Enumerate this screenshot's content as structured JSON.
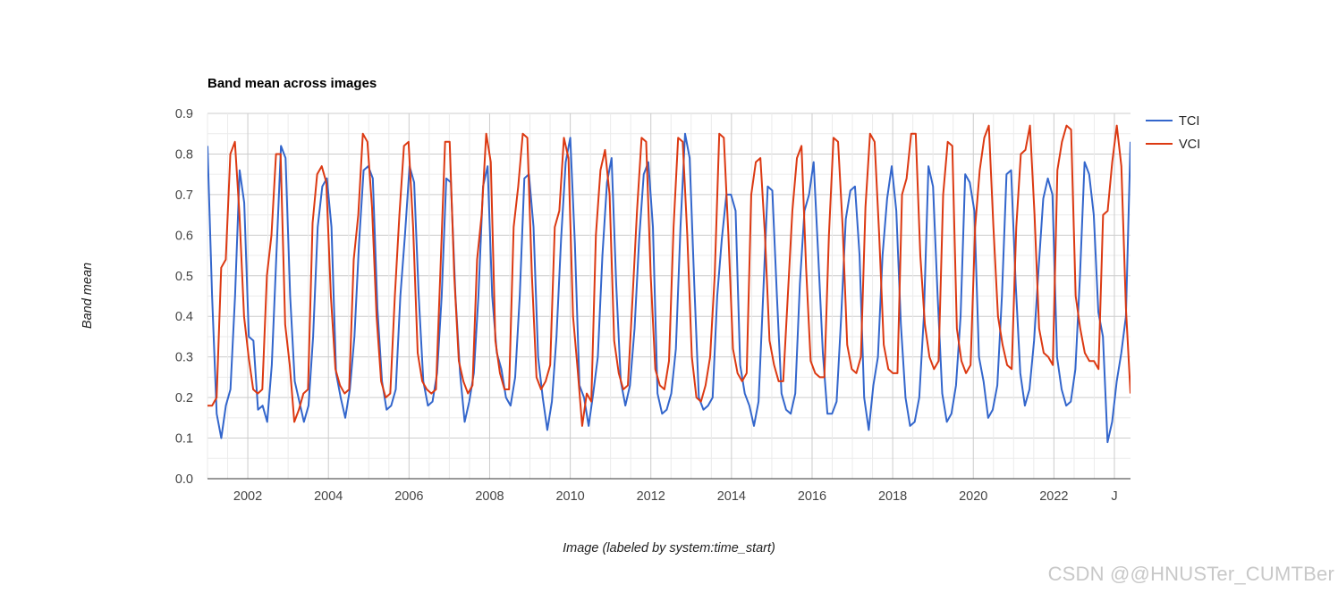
{
  "chart_data": {
    "type": "line",
    "title": "Band mean across images",
    "xlabel": "Image (labeled by system:time_start)",
    "ylabel": "Band mean",
    "ylim": [
      0,
      0.9
    ],
    "yticks": [
      "0.0",
      "0.1",
      "0.2",
      "0.3",
      "0.4",
      "0.5",
      "0.6",
      "0.7",
      "0.8",
      "0.9"
    ],
    "xlim": [
      2001,
      2023.9
    ],
    "xticks": [
      {
        "value": 2002,
        "label": "2002"
      },
      {
        "value": 2004,
        "label": "2004"
      },
      {
        "value": 2006,
        "label": "2006"
      },
      {
        "value": 2008,
        "label": "2008"
      },
      {
        "value": 2010,
        "label": "2010"
      },
      {
        "value": 2012,
        "label": "2012"
      },
      {
        "value": 2014,
        "label": "2014"
      },
      {
        "value": 2016,
        "label": "2016"
      },
      {
        "value": 2018,
        "label": "2018"
      },
      {
        "value": 2020,
        "label": "2020"
      },
      {
        "value": 2022,
        "label": "2022"
      },
      {
        "value": 2023.5,
        "label": "J"
      }
    ],
    "grid": true,
    "legend_position": "right",
    "sample_interval_years": 0.125,
    "series": [
      {
        "name": "TCI",
        "color": "#3366cc",
        "values": [
          0.82,
          0.45,
          0.16,
          0.1,
          0.18,
          0.22,
          0.45,
          0.76,
          0.68,
          0.35,
          0.34,
          0.17,
          0.18,
          0.14,
          0.28,
          0.55,
          0.82,
          0.79,
          0.45,
          0.24,
          0.19,
          0.14,
          0.18,
          0.35,
          0.62,
          0.72,
          0.74,
          0.62,
          0.26,
          0.2,
          0.15,
          0.22,
          0.35,
          0.58,
          0.76,
          0.77,
          0.74,
          0.42,
          0.24,
          0.17,
          0.18,
          0.22,
          0.45,
          0.6,
          0.77,
          0.73,
          0.45,
          0.24,
          0.18,
          0.19,
          0.26,
          0.45,
          0.74,
          0.73,
          0.45,
          0.26,
          0.14,
          0.19,
          0.26,
          0.45,
          0.72,
          0.77,
          0.45,
          0.31,
          0.27,
          0.2,
          0.18,
          0.25,
          0.45,
          0.74,
          0.75,
          0.62,
          0.3,
          0.2,
          0.12,
          0.19,
          0.35,
          0.59,
          0.78,
          0.84,
          0.58,
          0.23,
          0.2,
          0.13,
          0.21,
          0.3,
          0.55,
          0.73,
          0.79,
          0.48,
          0.24,
          0.18,
          0.23,
          0.37,
          0.59,
          0.75,
          0.78,
          0.62,
          0.21,
          0.16,
          0.17,
          0.21,
          0.32,
          0.62,
          0.85,
          0.79,
          0.48,
          0.2,
          0.17,
          0.18,
          0.2,
          0.45,
          0.59,
          0.7,
          0.7,
          0.66,
          0.28,
          0.21,
          0.18,
          0.13,
          0.19,
          0.45,
          0.72,
          0.71,
          0.45,
          0.21,
          0.17,
          0.16,
          0.21,
          0.48,
          0.66,
          0.7,
          0.78,
          0.55,
          0.31,
          0.16,
          0.16,
          0.19,
          0.4,
          0.64,
          0.71,
          0.72,
          0.55,
          0.2,
          0.12,
          0.23,
          0.3,
          0.55,
          0.69,
          0.77,
          0.66,
          0.38,
          0.2,
          0.13,
          0.14,
          0.2,
          0.4,
          0.77,
          0.72,
          0.45,
          0.21,
          0.14,
          0.16,
          0.23,
          0.4,
          0.75,
          0.73,
          0.66,
          0.3,
          0.24,
          0.15,
          0.17,
          0.23,
          0.45,
          0.75,
          0.76,
          0.48,
          0.26,
          0.18,
          0.22,
          0.34,
          0.52,
          0.69,
          0.74,
          0.7,
          0.3,
          0.22,
          0.18,
          0.19,
          0.27,
          0.5,
          0.78,
          0.75,
          0.65,
          0.41,
          0.35,
          0.09,
          0.14,
          0.24,
          0.31,
          0.4,
          0.83
        ]
      },
      {
        "name": "VCI",
        "color": "#dc3912",
        "values": [
          0.18,
          0.18,
          0.2,
          0.52,
          0.54,
          0.8,
          0.83,
          0.65,
          0.4,
          0.3,
          0.22,
          0.21,
          0.22,
          0.5,
          0.6,
          0.8,
          0.8,
          0.38,
          0.28,
          0.14,
          0.17,
          0.21,
          0.22,
          0.63,
          0.75,
          0.77,
          0.73,
          0.45,
          0.27,
          0.23,
          0.21,
          0.22,
          0.54,
          0.65,
          0.85,
          0.83,
          0.67,
          0.4,
          0.24,
          0.2,
          0.21,
          0.45,
          0.65,
          0.82,
          0.83,
          0.62,
          0.31,
          0.24,
          0.22,
          0.21,
          0.22,
          0.52,
          0.83,
          0.83,
          0.5,
          0.29,
          0.24,
          0.21,
          0.23,
          0.54,
          0.65,
          0.85,
          0.78,
          0.34,
          0.26,
          0.22,
          0.22,
          0.62,
          0.72,
          0.85,
          0.84,
          0.5,
          0.25,
          0.22,
          0.24,
          0.28,
          0.62,
          0.66,
          0.84,
          0.79,
          0.4,
          0.27,
          0.13,
          0.21,
          0.19,
          0.6,
          0.76,
          0.81,
          0.7,
          0.34,
          0.26,
          0.22,
          0.23,
          0.44,
          0.66,
          0.84,
          0.83,
          0.5,
          0.27,
          0.23,
          0.22,
          0.29,
          0.62,
          0.84,
          0.83,
          0.6,
          0.3,
          0.2,
          0.19,
          0.23,
          0.3,
          0.5,
          0.85,
          0.84,
          0.6,
          0.32,
          0.26,
          0.24,
          0.26,
          0.7,
          0.78,
          0.79,
          0.6,
          0.34,
          0.28,
          0.24,
          0.24,
          0.45,
          0.66,
          0.79,
          0.82,
          0.52,
          0.29,
          0.26,
          0.25,
          0.25,
          0.6,
          0.84,
          0.83,
          0.62,
          0.33,
          0.27,
          0.26,
          0.3,
          0.67,
          0.85,
          0.83,
          0.6,
          0.33,
          0.27,
          0.26,
          0.26,
          0.7,
          0.74,
          0.85,
          0.85,
          0.55,
          0.38,
          0.3,
          0.27,
          0.29,
          0.7,
          0.83,
          0.82,
          0.37,
          0.29,
          0.26,
          0.28,
          0.62,
          0.76,
          0.84,
          0.87,
          0.62,
          0.4,
          0.33,
          0.28,
          0.27,
          0.62,
          0.8,
          0.81,
          0.87,
          0.65,
          0.37,
          0.31,
          0.3,
          0.28,
          0.76,
          0.83,
          0.87,
          0.86,
          0.45,
          0.37,
          0.31,
          0.29,
          0.29,
          0.27,
          0.65,
          0.66,
          0.78,
          0.87,
          0.77,
          0.42,
          0.21
        ]
      }
    ]
  },
  "watermark": "CSDN @@HNUSTer_CUMTBer"
}
